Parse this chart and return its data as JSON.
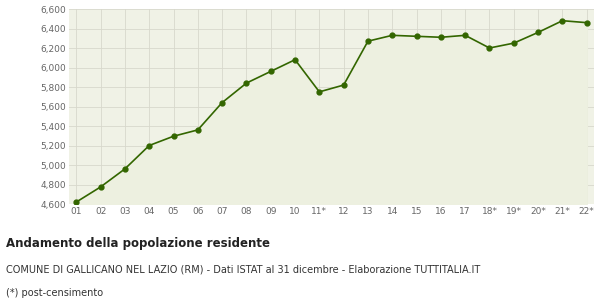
{
  "x_labels": [
    "01",
    "02",
    "03",
    "04",
    "05",
    "06",
    "07",
    "08",
    "09",
    "10",
    "11*",
    "12",
    "13",
    "14",
    "15",
    "16",
    "17",
    "18*",
    "19*",
    "20*",
    "21*",
    "22*"
  ],
  "y_values": [
    4620,
    4775,
    4960,
    5200,
    5295,
    5360,
    5640,
    5840,
    5960,
    6080,
    5750,
    5820,
    6270,
    6330,
    6320,
    6310,
    6330,
    6200,
    6250,
    6360,
    6480,
    6460
  ],
  "line_color": "#336600",
  "fill_color": "#edf0e0",
  "marker_color": "#336600",
  "bg_color": "#f0f2e6",
  "fig_bg_color": "#ffffff",
  "grid_color": "#d8d8cc",
  "ylim": [
    4600,
    6600
  ],
  "yticks": [
    4600,
    4800,
    5000,
    5200,
    5400,
    5600,
    5800,
    6000,
    6200,
    6400,
    6600
  ],
  "title": "Andamento della popolazione residente",
  "subtitle": "COMUNE DI GALLICANO NEL LAZIO (RM) - Dati ISTAT al 31 dicembre - Elaborazione TUTTITALIA.IT",
  "footnote": "(*) post-censimento",
  "title_fontsize": 8.5,
  "subtitle_fontsize": 7,
  "footnote_fontsize": 7,
  "tick_fontsize": 6.5,
  "marker_size": 3.5,
  "linewidth": 1.2
}
